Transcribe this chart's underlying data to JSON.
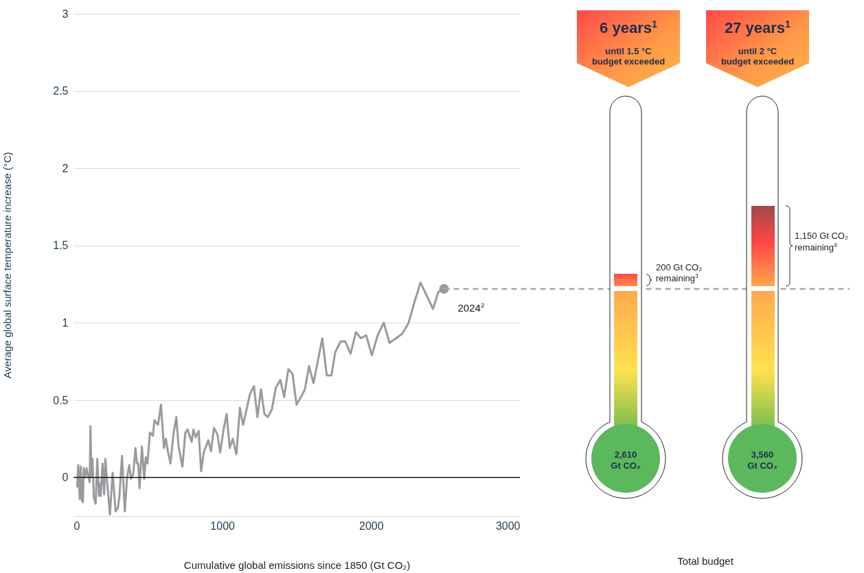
{
  "chart_data": {
    "type": "line",
    "xlabel": "Cumulative global emissions since 1850 (Gt CO₂)",
    "ylabel": "Average global surface temperature increase (°C)",
    "xlim": [
      0,
      3000
    ],
    "xticks": [
      0,
      1000,
      2000,
      3000
    ],
    "ylim": [
      -0.25,
      3
    ],
    "yticks": [
      0,
      0.5,
      1,
      1.5,
      2,
      2.5,
      3
    ],
    "grid": "y",
    "line_style": "solid",
    "series": [
      {
        "color": "#9a9a9e",
        "x": [
          25,
          32,
          42,
          49,
          57,
          63,
          69,
          78,
          88,
          98,
          109,
          114,
          121,
          128,
          137,
          149,
          160,
          171,
          178,
          183,
          195,
          206,
          214,
          226,
          245,
          263,
          283,
          298,
          309,
          326,
          345,
          360,
          375,
          386,
          401,
          417,
          426,
          435,
          444,
          460,
          475,
          486,
          497,
          514,
          534,
          544,
          568,
          588,
          608,
          621,
          632,
          652,
          672,
          691,
          706,
          732,
          752,
          767,
          794,
          806,
          821,
          841,
          858,
          875,
          906,
          924,
          944,
          967,
          986,
          1007,
          1029,
          1050,
          1070,
          1095,
          1118,
          1140,
          1186,
          1213,
          1236,
          1260,
          1283,
          1306,
          1333,
          1360,
          1390,
          1416,
          1444,
          1472,
          1499,
          1529,
          1555,
          1583,
          1613,
          1672,
          1702,
          1733,
          1759,
          1795,
          1826,
          1862,
          1898,
          1932,
          1967,
          2005,
          2044,
          2085,
          2124,
          2167,
          2210,
          2252,
          2290,
          2332,
          2416,
          2452,
          2490
        ],
        "values": [
          -0.06,
          0.08,
          -0.14,
          0.07,
          -0.15,
          -0.16,
          0.06,
          0,
          0.06,
          0.01,
          -0.03,
          0.33,
          0.01,
          0.12,
          -0.13,
          -0.17,
          0.12,
          -0.12,
          -0.04,
          -0.12,
          0.09,
          -0.11,
          0.12,
          -0.03,
          -0.24,
          0.03,
          -0.22,
          -0.2,
          -0.12,
          0.14,
          -0.22,
          0,
          0.08,
          -0.01,
          0.02,
          0.19,
          0.09,
          0.09,
          -0.07,
          0.2,
          -0.01,
          0.13,
          0.09,
          0.29,
          0.27,
          0.37,
          0.34,
          0.47,
          0.19,
          0.25,
          0.18,
          0.09,
          0.28,
          0.39,
          0.2,
          0.07,
          0.29,
          0.31,
          0.23,
          0.31,
          0.26,
          0.3,
          0.04,
          0.16,
          0.24,
          0.17,
          0.32,
          0.28,
          0.16,
          0.3,
          0.41,
          0.19,
          0.25,
          0.15,
          0.45,
          0.34,
          0.54,
          0.59,
          0.39,
          0.57,
          0.41,
          0.39,
          0.44,
          0.58,
          0.63,
          0.52,
          0.7,
          0.67,
          0.47,
          0.52,
          0.57,
          0.72,
          0.61,
          0.9,
          0.66,
          0.66,
          0.81,
          0.88,
          0.88,
          0.8,
          0.94,
          0.9,
          0.92,
          0.79,
          0.92,
          1,
          0.87,
          0.9,
          0.93,
          1,
          1.13,
          1.26,
          1.09,
          1.2,
          1.22
        ]
      },
      {
        "type": "scatter",
        "color": "#9a9a9e",
        "marker": "circle",
        "x": [
          2490
        ],
        "values": [
          1.22
        ]
      }
    ],
    "ref_lines": [
      {
        "axis": "y",
        "value": 0,
        "color": "#000000",
        "line_style": "solid"
      },
      {
        "axis": "y",
        "value": 1.22,
        "color": "#a6a6a6",
        "line_style": "dashed"
      }
    ],
    "annotations": [
      {
        "text": "2024$^{2}$",
        "x": 2490,
        "y": 1.22
      },
      "6 years$^{1}$",
      "until 1.5 °C",
      "budget exceeded",
      "27 years$^{1}$",
      "until 2 °C",
      "budget exceeded",
      "200 Gt CO₂",
      "remaining$^{3}$",
      "1,150 Gt CO₂",
      "remaining$^{4}$",
      "2,610",
      "Gt CO₂",
      "3,560",
      "Gt CO₂",
      "Total budget"
    ]
  }
}
